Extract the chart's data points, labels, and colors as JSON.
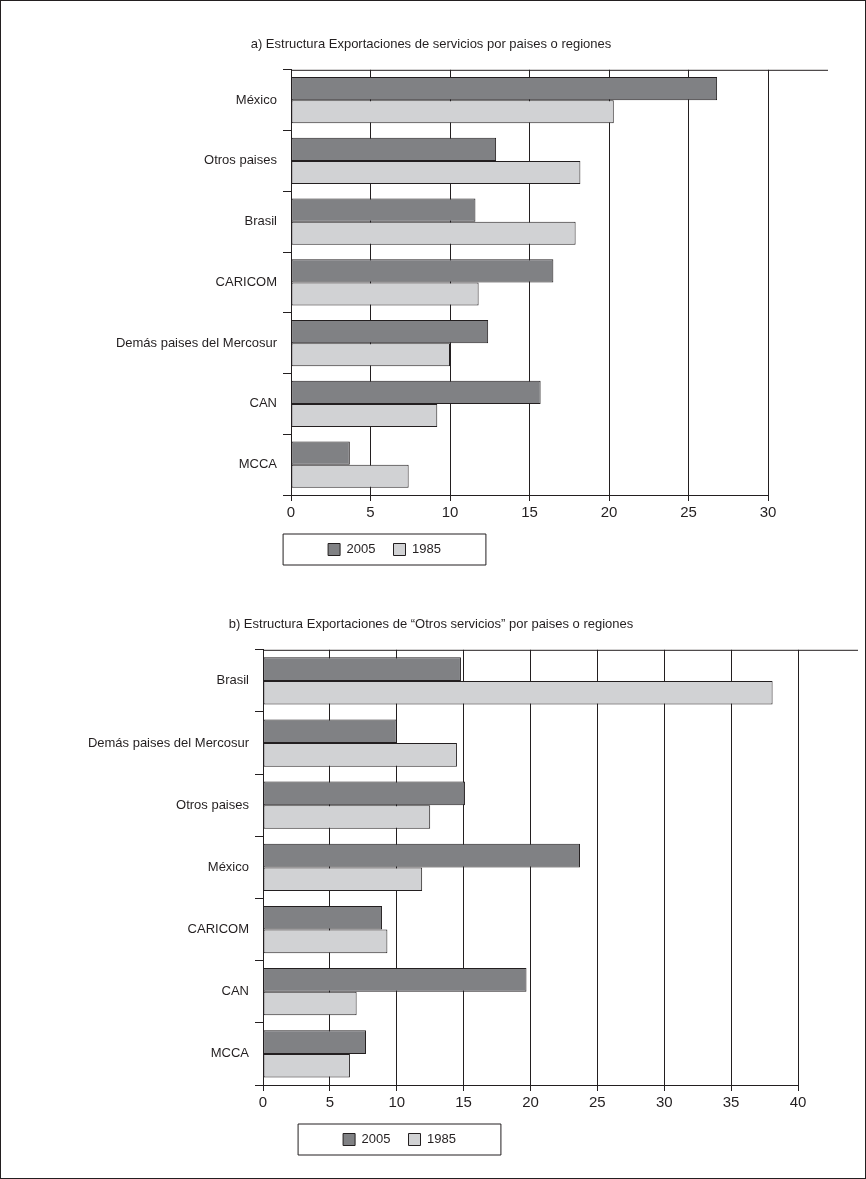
{
  "chart_data": [
    {
      "type": "bar",
      "orientation": "horizontal",
      "title": "a) Estructura Exportaciones de servicios por paises o regiones",
      "categories": [
        "México",
        "Otros paises",
        "Brasil",
        "CARICOM",
        "Demás paises del Mercosur",
        "CAN",
        "MCCA"
      ],
      "series": [
        {
          "name": "2005",
          "color": "#808184",
          "values": [
            26.8,
            12.9,
            11.6,
            16.5,
            12.4,
            15.7,
            3.7
          ]
        },
        {
          "name": "1985",
          "color": "#d1d2d4",
          "values": [
            20.3,
            18.2,
            17.9,
            11.8,
            10.0,
            9.2,
            7.4
          ]
        }
      ],
      "xlim": [
        0,
        30
      ],
      "xticks": [
        0,
        5,
        10,
        15,
        20,
        25,
        30
      ],
      "grid": "x",
      "legend": "bottom"
    },
    {
      "type": "bar",
      "orientation": "horizontal",
      "title": "b) Estructura Exportaciones de “Otros servicios” por paises o regiones",
      "categories": [
        "Brasil",
        "Demás paises del Mercosur",
        "Otros paises",
        "México",
        "CARICOM",
        "CAN",
        "MCCA"
      ],
      "series": [
        {
          "name": "2005",
          "color": "#808184",
          "values": [
            14.8,
            10.0,
            15.1,
            23.7,
            8.9,
            19.7,
            7.7
          ]
        },
        {
          "name": "1985",
          "color": "#d1d2d4",
          "values": [
            38.1,
            14.5,
            12.5,
            11.9,
            9.3,
            7.0,
            6.5
          ]
        }
      ],
      "xlim": [
        0,
        40
      ],
      "xticks": [
        0,
        5,
        10,
        15,
        20,
        25,
        30,
        35,
        40
      ],
      "grid": "x",
      "legend": "bottom"
    }
  ]
}
